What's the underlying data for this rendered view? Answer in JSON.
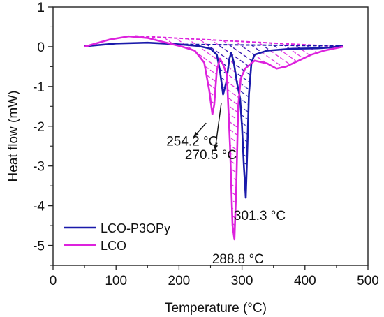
{
  "chart_data": {
    "type": "line",
    "xlabel": "Temperature (°C)",
    "ylabel": "Heat flow (mW)",
    "xlim": [
      0,
      500
    ],
    "ylim": [
      -5.5,
      1
    ],
    "x_ticks": [
      "0",
      "100",
      "200",
      "300",
      "400",
      "500"
    ],
    "y_ticks": [
      "1",
      "0",
      "-1",
      "-2",
      "-3",
      "-4",
      "-5"
    ],
    "grid": false,
    "legend_position": "bottom-left",
    "series": [
      {
        "name": "LCO-P3OPy",
        "color": "#1a1aaa",
        "hatch": "dashed-blue",
        "points": [
          [
            50,
            0.01
          ],
          [
            100,
            0.08
          ],
          [
            150,
            0.1
          ],
          [
            200,
            0.06
          ],
          [
            230,
            0.02
          ],
          [
            250,
            -0.05
          ],
          [
            260,
            -0.2
          ],
          [
            265,
            -0.6
          ],
          [
            270,
            -1.2
          ],
          [
            275,
            -0.9
          ],
          [
            280,
            -0.3
          ],
          [
            283,
            -0.15
          ],
          [
            287,
            -0.4
          ],
          [
            292,
            -0.9
          ],
          [
            297,
            -1.3
          ],
          [
            300,
            -2.0
          ],
          [
            303,
            -3.0
          ],
          [
            306,
            -3.8
          ],
          [
            308,
            -2.8
          ],
          [
            311,
            -1.2
          ],
          [
            315,
            -0.4
          ],
          [
            320,
            -0.2
          ],
          [
            340,
            -0.1
          ],
          [
            380,
            -0.05
          ],
          [
            420,
            -0.04
          ],
          [
            440,
            -0.02
          ],
          [
            460,
            0.02
          ]
        ],
        "baseline": [
          [
            200,
            0.06
          ],
          [
            460,
            0.02
          ]
        ]
      },
      {
        "name": "LCO",
        "color": "#dd22dd",
        "hatch": "dashed-magenta",
        "points": [
          [
            50,
            0.0
          ],
          [
            90,
            0.18
          ],
          [
            120,
            0.26
          ],
          [
            150,
            0.22
          ],
          [
            180,
            0.1
          ],
          [
            205,
            0.0
          ],
          [
            225,
            -0.1
          ],
          [
            240,
            -0.4
          ],
          [
            248,
            -1.1
          ],
          [
            253,
            -1.7
          ],
          [
            256,
            -1.45
          ],
          [
            260,
            -0.6
          ],
          [
            265,
            -0.3
          ],
          [
            270,
            -0.45
          ],
          [
            276,
            -0.7
          ],
          [
            281,
            -2.5
          ],
          [
            285,
            -4.5
          ],
          [
            288,
            -4.85
          ],
          [
            291,
            -3.5
          ],
          [
            294,
            -1.5
          ],
          [
            298,
            -0.8
          ],
          [
            305,
            -0.55
          ],
          [
            320,
            -0.35
          ],
          [
            340,
            -0.42
          ],
          [
            355,
            -0.55
          ],
          [
            370,
            -0.5
          ],
          [
            390,
            -0.35
          ],
          [
            410,
            -0.2
          ],
          [
            430,
            -0.1
          ],
          [
            445,
            -0.05
          ],
          [
            460,
            0.0
          ]
        ],
        "baseline": [
          [
            130,
            0.27
          ],
          [
            460,
            0.0
          ]
        ]
      }
    ],
    "annotations": [
      {
        "text": "254.2 °C",
        "x": 254.2,
        "y": -1.71
      },
      {
        "text": "270.5 °C",
        "x": 270.5,
        "y": -1.2
      },
      {
        "text": "301.3 °C",
        "x": 306,
        "y": -3.8
      },
      {
        "text": "288.8 °C",
        "x": 288,
        "y": -4.85
      }
    ]
  }
}
